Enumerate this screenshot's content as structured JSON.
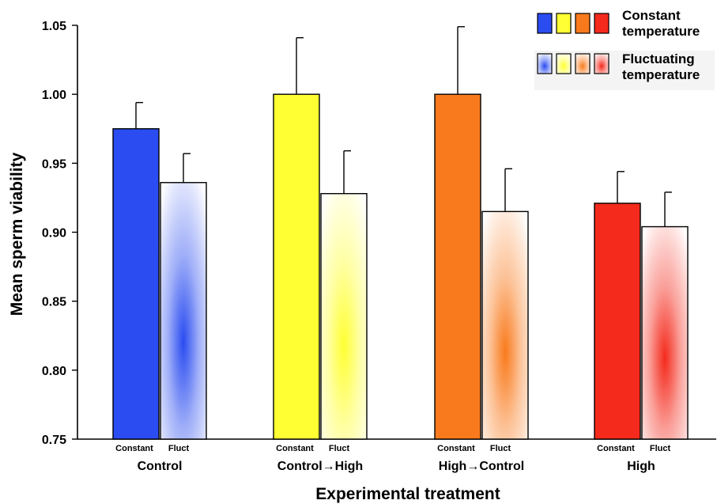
{
  "chart_data": {
    "type": "bar",
    "ylabel": "Mean sperm viability",
    "xlabel": "Experimental treatment",
    "ylim": [
      0.75,
      1.05
    ],
    "yticks": [
      "0.75",
      "0.80",
      "0.85",
      "0.90",
      "0.95",
      "1.00",
      "1.05"
    ],
    "ytick_values": [
      0.75,
      0.8,
      0.85,
      0.9,
      0.95,
      1.0,
      1.05
    ],
    "grid": false,
    "legend_position": "top-right",
    "categories": [
      "Control",
      "Control→High",
      "High→Control",
      "High"
    ],
    "sub_categories": [
      "Constant",
      "Fluct"
    ],
    "colors": [
      "#2a4cf0",
      "#ffff33",
      "#f97a1c",
      "#f42a1c"
    ],
    "series": [
      {
        "name": "Constant temperature",
        "values": [
          0.975,
          1.0,
          1.0,
          0.921
        ],
        "errors": [
          0.019,
          0.041,
          0.049,
          0.023
        ]
      },
      {
        "name": "Fluctuating temperature",
        "values": [
          0.936,
          0.928,
          0.915,
          0.904
        ],
        "errors": [
          0.021,
          0.031,
          0.031,
          0.025
        ]
      }
    ],
    "legend": {
      "constant_lines": [
        "Constant",
        "temperature"
      ],
      "fluct_lines": [
        "Fluctuating",
        "temperature"
      ]
    }
  }
}
